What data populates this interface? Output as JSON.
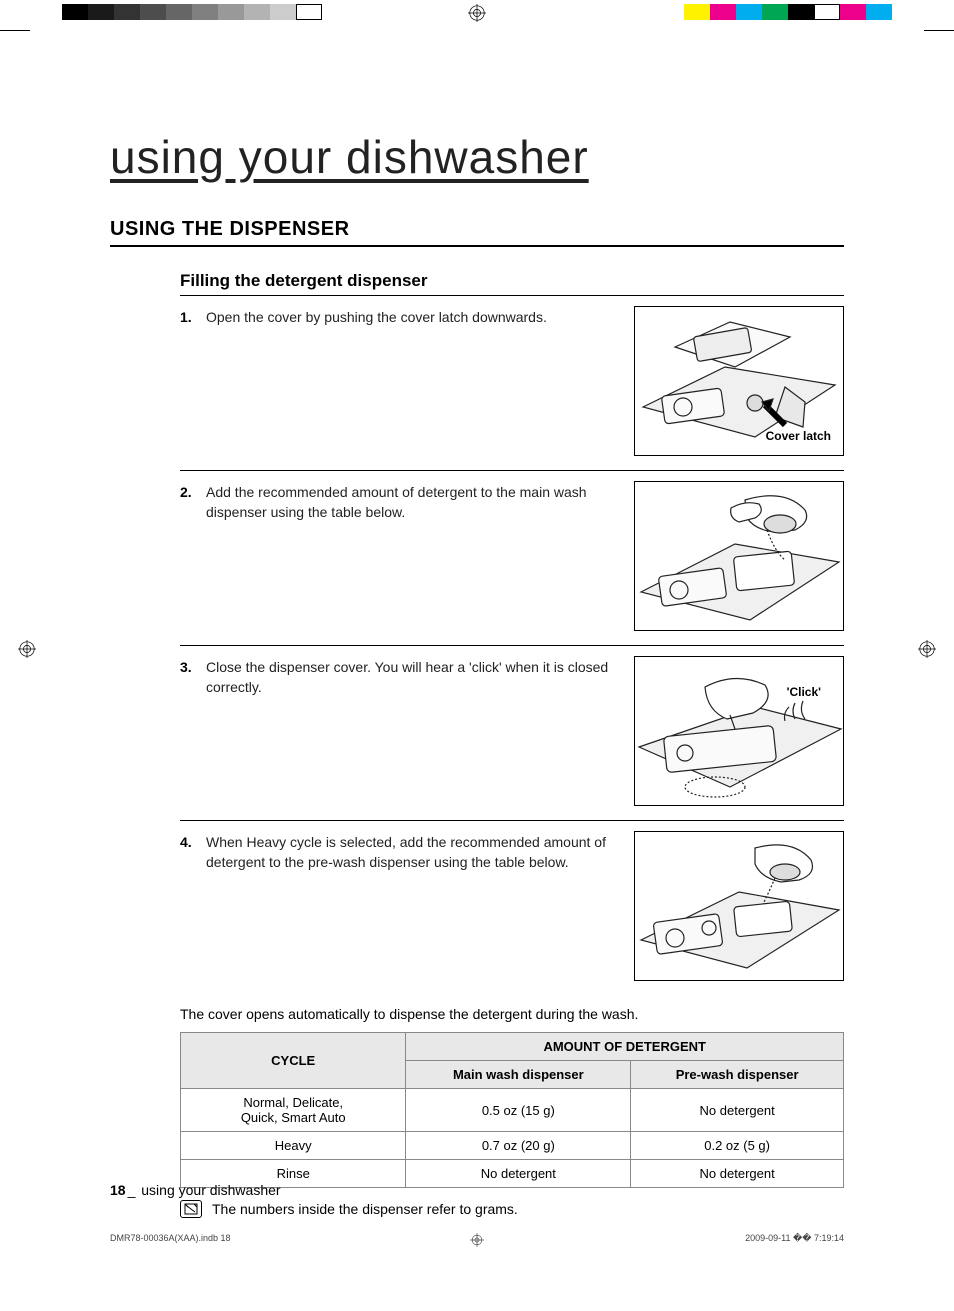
{
  "print_marks": {
    "grayscale_bar": [
      "#000000",
      "#1a1a1a",
      "#333333",
      "#4d4d4d",
      "#666666",
      "#808080",
      "#999999",
      "#b3b3b3",
      "#cccccc",
      "#ffffff"
    ],
    "color_bar": [
      "#fff200",
      "#ec008c",
      "#00aeef",
      "#00a651",
      "#000000",
      "#ffffff",
      "#ec008c",
      "#00aeef"
    ]
  },
  "titles": {
    "main": "using your dishwasher",
    "section": "USING THE DISPENSER",
    "sub": "Filling the detergent dispenser"
  },
  "steps": [
    {
      "num": "1.",
      "text": "Open the cover by pushing the cover latch downwards.",
      "diagram_label": "Cover latch",
      "label_style": "bottom:12px;right:12px;"
    },
    {
      "num": "2.",
      "text": "Add the recommended amount of detergent to the main wash dispenser using the table below.",
      "diagram_label": "",
      "label_style": ""
    },
    {
      "num": "3.",
      "text": "Close the dispenser cover. You will hear a 'click' when it is closed correctly.",
      "diagram_label": "'Click'",
      "label_style": "top:28px;right:22px;"
    },
    {
      "num": "4.",
      "text": "When Heavy cycle is selected, add the recommended amount of detergent to the pre-wash dispenser using the table below.",
      "diagram_label": "",
      "label_style": ""
    }
  ],
  "post_note": "The cover opens automatically to dispense the detergent during the wash.",
  "table": {
    "header_cycle": "CYCLE",
    "header_amount": "AMOUNT OF DETERGENT",
    "sub_main": "Main wash dispenser",
    "sub_pre": "Pre-wash dispenser",
    "rows": [
      {
        "cycle": "Normal, Delicate,\nQuick, Smart Auto",
        "main": "0.5 oz (15 g)",
        "pre": "No detergent"
      },
      {
        "cycle": "Heavy",
        "main": "0.7 oz (20 g)",
        "pre": "0.2 oz (5 g)"
      },
      {
        "cycle": "Rinse",
        "main": "No detergent",
        "pre": "No detergent"
      }
    ]
  },
  "note": "The numbers inside the dispenser refer to grams.",
  "footer": {
    "page_num": "18",
    "sep": "_",
    "label": " using your dishwasher"
  },
  "meta": {
    "file": "DMR78-00036A(XAA).indb   18",
    "datetime": "2009-09-11   �� 7:19:14"
  }
}
